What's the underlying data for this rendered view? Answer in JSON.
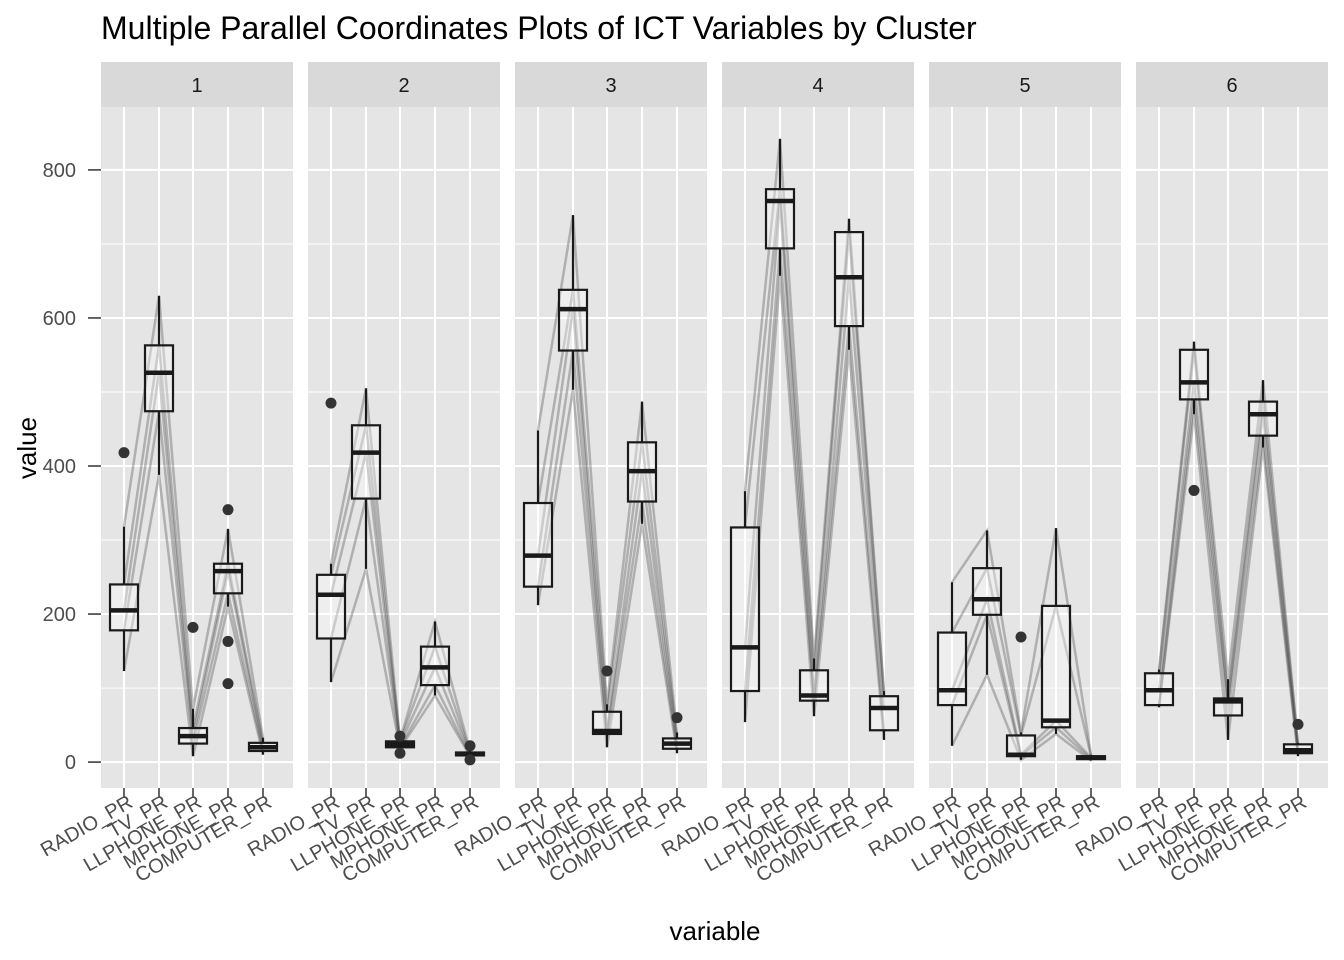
{
  "chart_data": {
    "type": "box",
    "title": "Multiple Parallel Coordinates Plots of ICT Variables by Cluster",
    "xlabel": "variable",
    "ylabel": "value",
    "ylim": [
      -35,
      885
    ],
    "y_ticks": [
      0,
      200,
      400,
      600,
      800
    ],
    "categories": [
      "RADIO_PR",
      "TV_PR",
      "LLPHONE_PR",
      "MPHONE_PR",
      "COMPUTER_PR"
    ],
    "facets": [
      {
        "label": "1",
        "boxes": [
          {
            "q1": 178,
            "median": 205,
            "q3": 240,
            "low": 123,
            "high": 318,
            "outliers": [
              418
            ]
          },
          {
            "q1": 474,
            "median": 526,
            "q3": 563,
            "low": 388,
            "high": 630,
            "outliers": []
          },
          {
            "q1": 25,
            "median": 35,
            "q3": 46,
            "low": 8,
            "high": 72,
            "outliers": [
              182
            ]
          },
          {
            "q1": 228,
            "median": 258,
            "q3": 268,
            "low": 210,
            "high": 315,
            "outliers": [
              341,
              163,
              106
            ]
          },
          {
            "q1": 15,
            "median": 20,
            "q3": 26,
            "low": 10,
            "high": 33,
            "outliers": []
          }
        ]
      },
      {
        "label": "2",
        "boxes": [
          {
            "q1": 167,
            "median": 226,
            "q3": 253,
            "low": 108,
            "high": 268,
            "outliers": [
              485
            ]
          },
          {
            "q1": 356,
            "median": 418,
            "q3": 455,
            "low": 261,
            "high": 505,
            "outliers": []
          },
          {
            "q1": 20,
            "median": 24,
            "q3": 28,
            "low": 18,
            "high": 30,
            "outliers": [
              12,
              35
            ]
          },
          {
            "q1": 104,
            "median": 128,
            "q3": 156,
            "low": 90,
            "high": 190,
            "outliers": []
          },
          {
            "q1": 9,
            "median": 11,
            "q3": 13,
            "low": 8,
            "high": 15,
            "outliers": [
              3,
              22
            ]
          }
        ]
      },
      {
        "label": "3",
        "boxes": [
          {
            "q1": 237,
            "median": 279,
            "q3": 350,
            "low": 212,
            "high": 448,
            "outliers": []
          },
          {
            "q1": 556,
            "median": 612,
            "q3": 638,
            "low": 503,
            "high": 739,
            "outliers": []
          },
          {
            "q1": 38,
            "median": 42,
            "q3": 68,
            "low": 20,
            "high": 78,
            "outliers": [
              123
            ]
          },
          {
            "q1": 352,
            "median": 393,
            "q3": 432,
            "low": 322,
            "high": 487,
            "outliers": []
          },
          {
            "q1": 18,
            "median": 25,
            "q3": 32,
            "low": 12,
            "high": 40,
            "outliers": [
              60
            ]
          }
        ]
      },
      {
        "label": "4",
        "boxes": [
          {
            "q1": 96,
            "median": 155,
            "q3": 317,
            "low": 54,
            "high": 366,
            "outliers": []
          },
          {
            "q1": 694,
            "median": 758,
            "q3": 774,
            "low": 657,
            "high": 842,
            "outliers": []
          },
          {
            "q1": 83,
            "median": 90,
            "q3": 124,
            "low": 62,
            "high": 140,
            "outliers": []
          },
          {
            "q1": 589,
            "median": 655,
            "q3": 716,
            "low": 557,
            "high": 734,
            "outliers": []
          },
          {
            "q1": 43,
            "median": 73,
            "q3": 89,
            "low": 30,
            "high": 96,
            "outliers": []
          }
        ]
      },
      {
        "label": "5",
        "boxes": [
          {
            "q1": 77,
            "median": 97,
            "q3": 175,
            "low": 22,
            "high": 243,
            "outliers": []
          },
          {
            "q1": 199,
            "median": 220,
            "q3": 262,
            "low": 118,
            "high": 313,
            "outliers": []
          },
          {
            "q1": 8,
            "median": 10,
            "q3": 36,
            "low": 3,
            "high": 40,
            "outliers": [
              169
            ]
          },
          {
            "q1": 47,
            "median": 56,
            "q3": 211,
            "low": 38,
            "high": 316,
            "outliers": []
          },
          {
            "q1": 4,
            "median": 6,
            "q3": 8,
            "low": 2,
            "high": 10,
            "outliers": []
          }
        ]
      },
      {
        "label": "6",
        "boxes": [
          {
            "q1": 77,
            "median": 97,
            "q3": 120,
            "low": 74,
            "high": 125,
            "outliers": []
          },
          {
            "q1": 490,
            "median": 513,
            "q3": 557,
            "low": 470,
            "high": 568,
            "outliers": [
              367
            ]
          },
          {
            "q1": 63,
            "median": 82,
            "q3": 86,
            "low": 30,
            "high": 112,
            "outliers": []
          },
          {
            "q1": 441,
            "median": 470,
            "q3": 487,
            "low": 425,
            "high": 516,
            "outliers": []
          },
          {
            "q1": 12,
            "median": 16,
            "q3": 24,
            "low": 8,
            "high": 26,
            "outliers": [
              51
            ]
          }
        ]
      }
    ],
    "colors": {
      "panel_background": "#e5e5e5",
      "strip_background": "#d9d9d9",
      "grid": "#ffffff",
      "box_stroke": "#1a1a1a",
      "box_fill": "#ffffff",
      "line": "#333333",
      "outlier": "#333333"
    },
    "grid": true,
    "legend": "none"
  }
}
